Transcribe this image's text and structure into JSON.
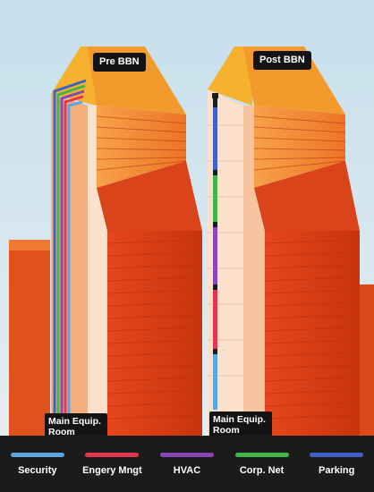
{
  "labels": {
    "pre": "Pre BBN",
    "post": "Post BBN",
    "room_pre": "Main Equip. Room",
    "room_post": "Main Equip. Room"
  },
  "legend": [
    {
      "label": "Security",
      "color": "#5ba6e0"
    },
    {
      "label": "Engery Mngt",
      "color": "#e4364e"
    },
    {
      "label": "HVAC",
      "color": "#8a46b8"
    },
    {
      "label": "Corp. Net",
      "color": "#41b44a"
    },
    {
      "label": "Parking",
      "color": "#3f62c8"
    }
  ],
  "colors": {
    "sky": "#cfe3ee",
    "building_dark": "#cf3b16",
    "building_light": "#f08a2c",
    "roof": "#f6b12e",
    "shaft": "#fae1cc",
    "banner": "#1b1b1b"
  }
}
